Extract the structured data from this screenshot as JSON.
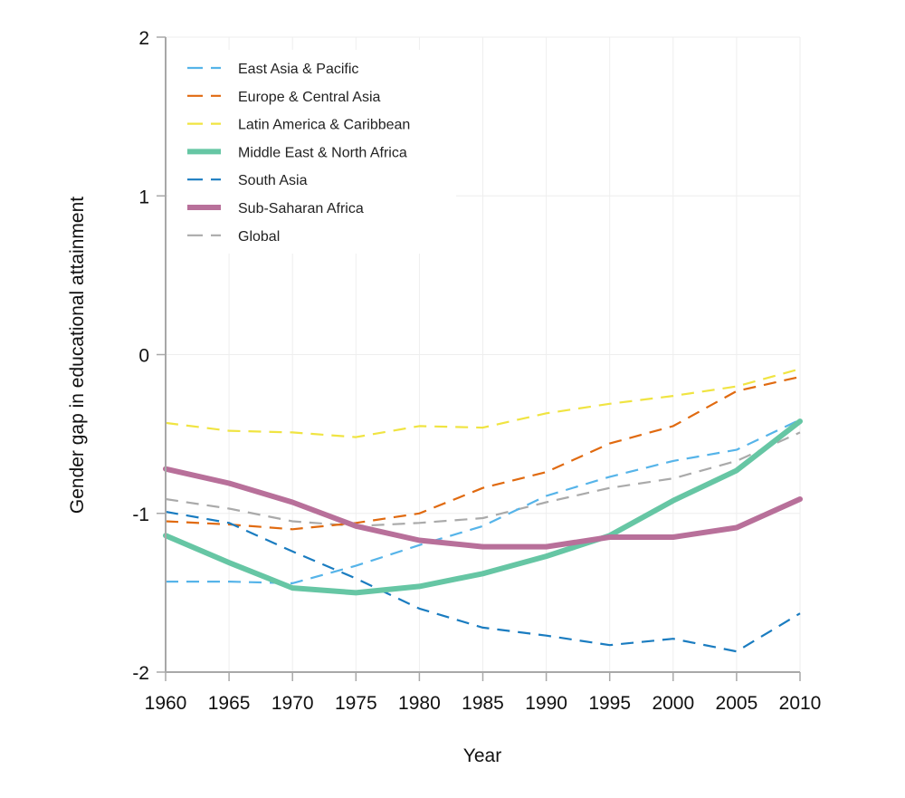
{
  "chart_data": {
    "type": "line",
    "title": "",
    "xlabel": "Year",
    "ylabel": "Gender gap in educational attainment",
    "x": [
      1960,
      1965,
      1970,
      1975,
      1980,
      1985,
      1990,
      1995,
      2000,
      2005,
      2010
    ],
    "xlim": [
      1960,
      2010
    ],
    "ylim": [
      -2,
      2
    ],
    "x_ticks": [
      "1960",
      "1965",
      "1970",
      "1975",
      "1980",
      "1985",
      "1990",
      "1995",
      "2000",
      "2005",
      "2010"
    ],
    "y_ticks": [
      "2",
      "1",
      "0",
      "-1",
      "-2"
    ],
    "y_tick_values": [
      2,
      1,
      0,
      -1,
      -2
    ],
    "grid": true,
    "legend_position": "top-left",
    "series": [
      {
        "name": "East Asia & Pacific",
        "color": "#56B4E9",
        "style": "dashed",
        "values": [
          -1.43,
          -1.43,
          -1.44,
          -1.33,
          -1.2,
          -1.08,
          -0.89,
          -0.77,
          -0.67,
          -0.6,
          -0.41
        ]
      },
      {
        "name": "Europe & Central Asia",
        "color": "#E06A10",
        "style": "dashed",
        "values": [
          -1.05,
          -1.07,
          -1.1,
          -1.06,
          -1.0,
          -0.84,
          -0.74,
          -0.56,
          -0.45,
          -0.23,
          -0.14
        ]
      },
      {
        "name": "Latin America & Caribbean",
        "color": "#F0E442",
        "style": "dashed",
        "values": [
          -0.43,
          -0.48,
          -0.49,
          -0.52,
          -0.45,
          -0.46,
          -0.37,
          -0.31,
          -0.26,
          -0.2,
          -0.09
        ]
      },
      {
        "name": "Middle East & North Africa",
        "color": "#66C6A4",
        "style": "solid",
        "values": [
          -1.14,
          -1.31,
          -1.47,
          -1.5,
          -1.46,
          -1.38,
          -1.27,
          -1.14,
          -0.92,
          -0.73,
          -0.42
        ]
      },
      {
        "name": "South Asia",
        "color": "#1A7CC0",
        "style": "dashed",
        "values": [
          -0.99,
          -1.06,
          -1.24,
          -1.41,
          -1.6,
          -1.72,
          -1.77,
          -1.83,
          -1.79,
          -1.87,
          -1.63
        ]
      },
      {
        "name": "Sub-Saharan Africa",
        "color": "#B8709A",
        "style": "solid",
        "values": [
          -0.72,
          -0.81,
          -0.93,
          -1.08,
          -1.17,
          -1.21,
          -1.21,
          -1.15,
          -1.15,
          -1.09,
          -0.91
        ]
      },
      {
        "name": "Global",
        "color": "#AAAAAA",
        "style": "dashed",
        "values": [
          -0.91,
          -0.97,
          -1.05,
          -1.08,
          -1.06,
          -1.03,
          -0.93,
          -0.84,
          -0.78,
          -0.67,
          -0.49
        ]
      }
    ]
  }
}
